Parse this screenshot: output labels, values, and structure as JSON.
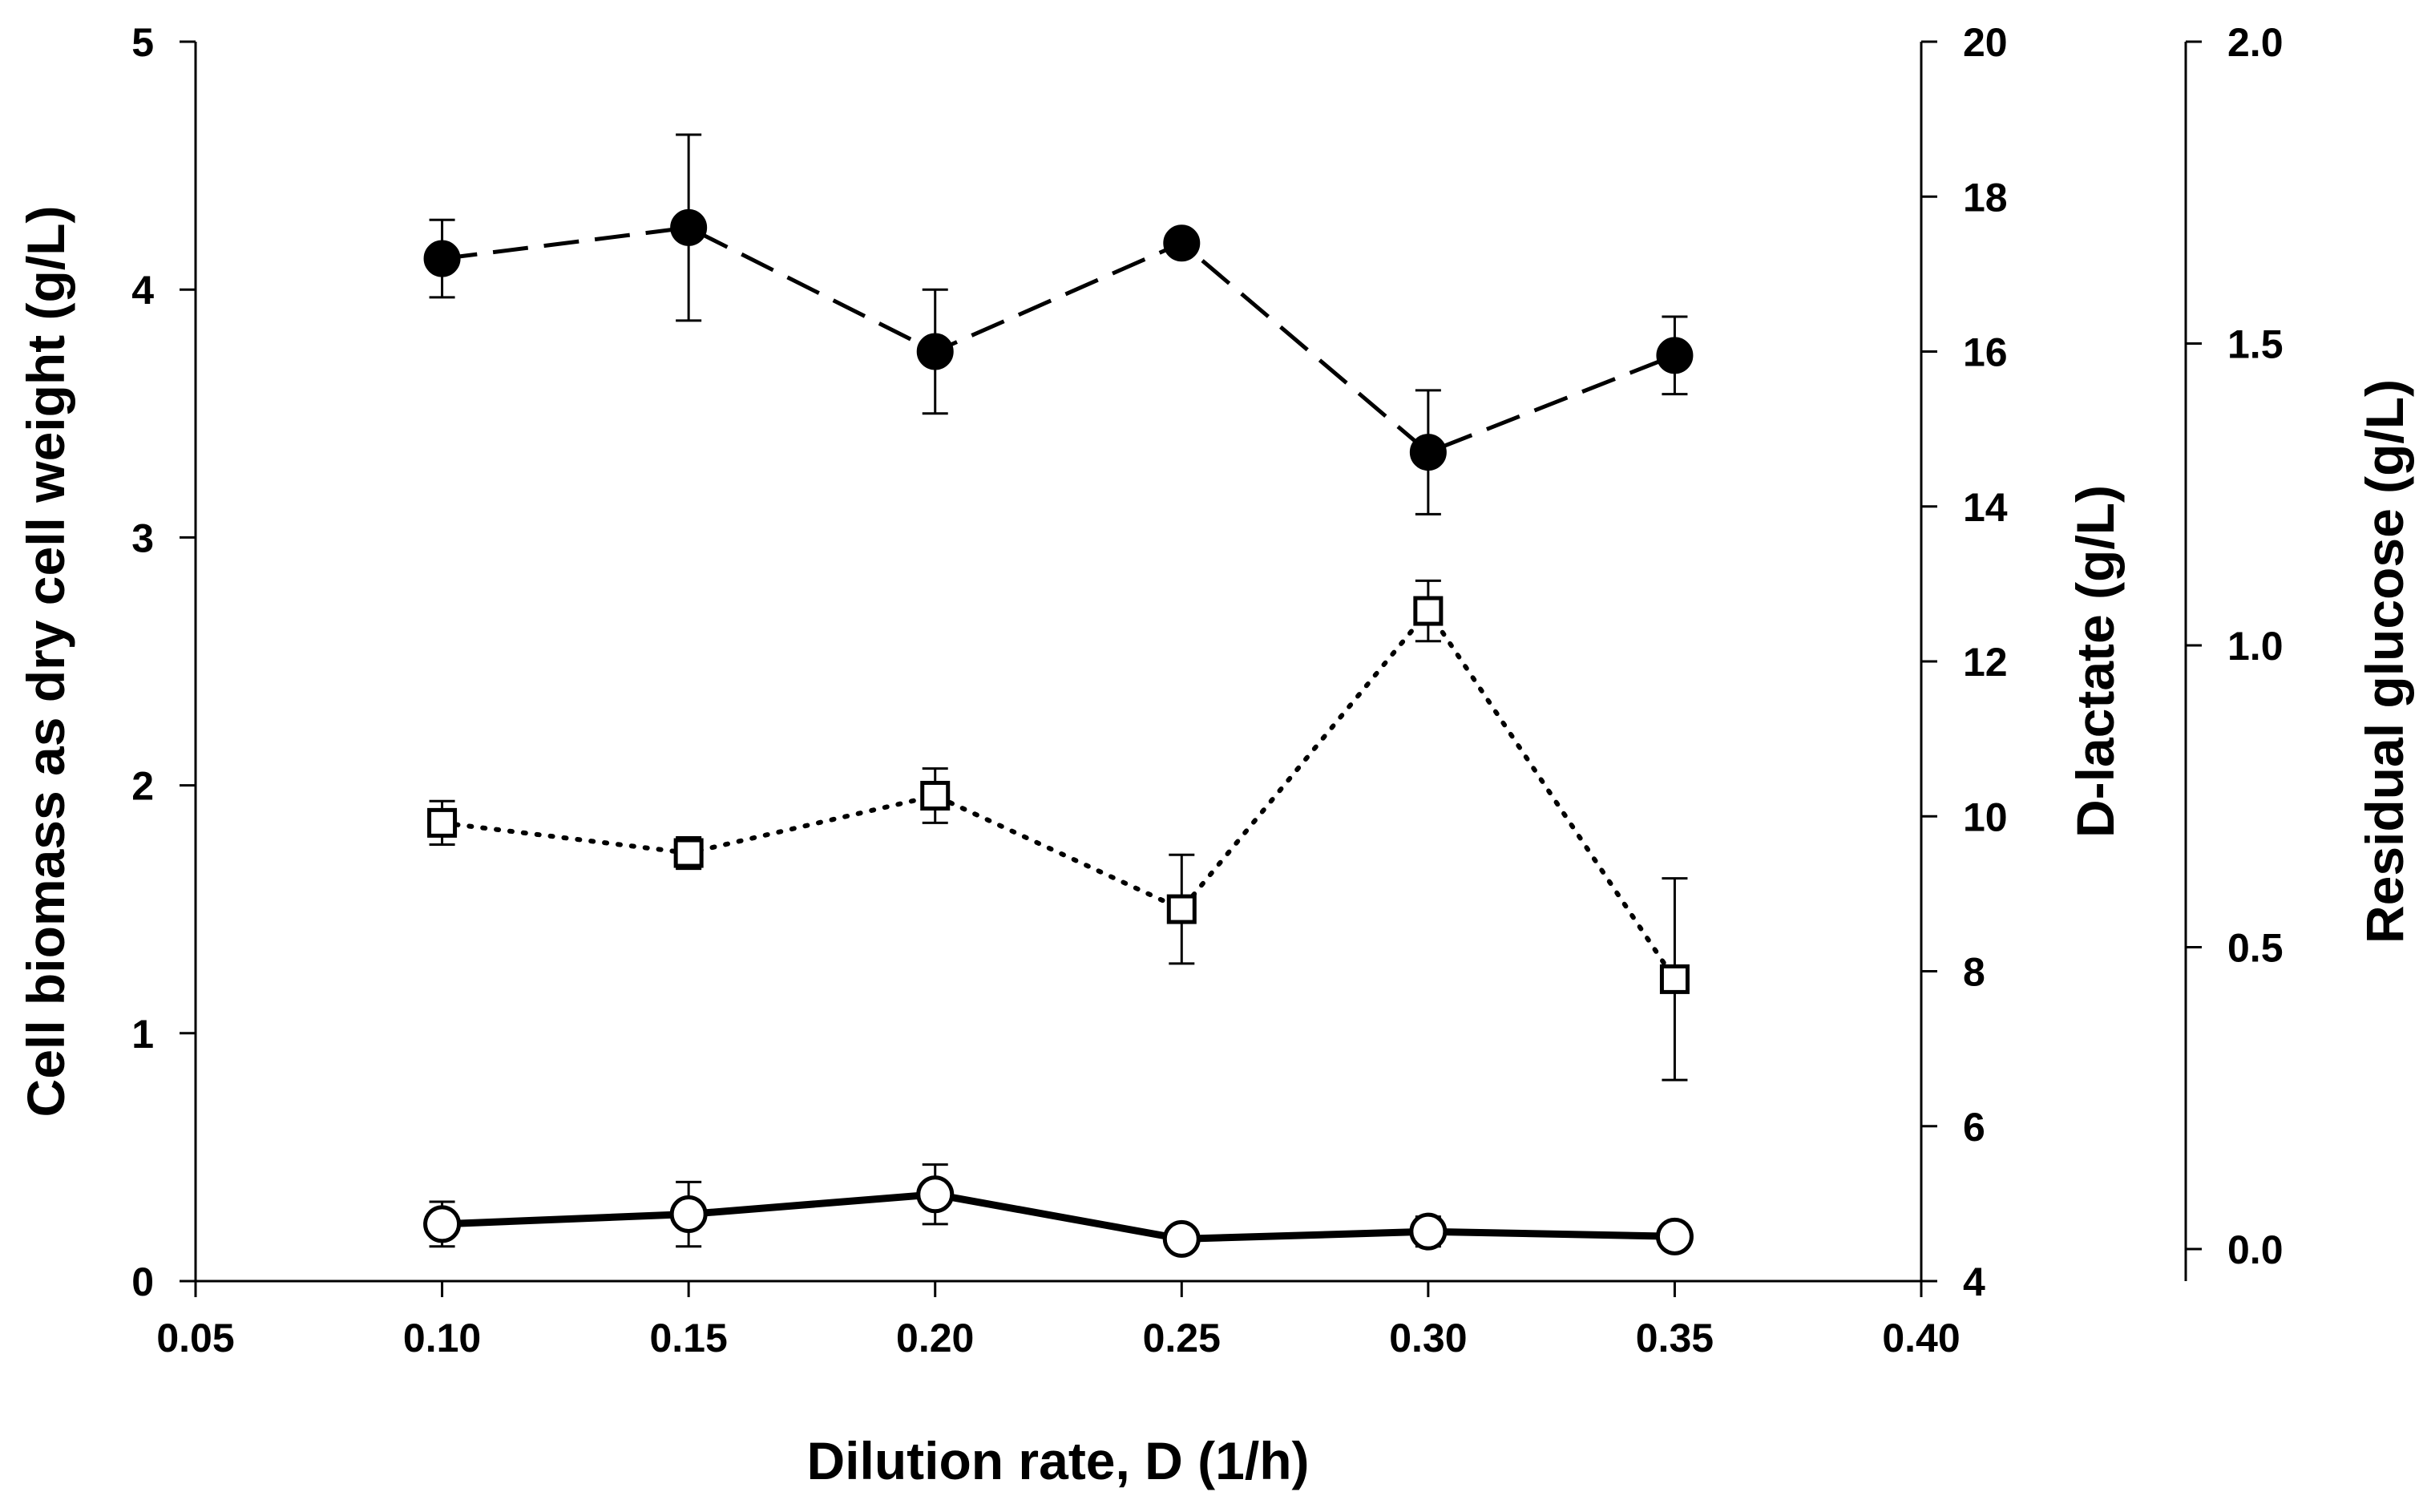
{
  "chart_data": {
    "type": "scatter",
    "xlabel": "Dilution rate, D (1/h)",
    "xlim": [
      0.05,
      0.4
    ],
    "xticks": [
      "0.05",
      "0.10",
      "0.15",
      "0.20",
      "0.25",
      "0.30",
      "0.35",
      "0.40"
    ],
    "axes": {
      "left": {
        "label": "Cell biomass as dry cell weight (g/L)",
        "range": [
          0,
          5
        ],
        "ticks": [
          "0",
          "1",
          "2",
          "3",
          "4",
          "5"
        ]
      },
      "right1": {
        "label": "D-lactate (g/L)",
        "range": [
          4,
          20
        ],
        "ticks": [
          "4",
          "6",
          "8",
          "10",
          "12",
          "14",
          "16",
          "18",
          "20"
        ]
      },
      "right2": {
        "label": "Residual glucose (g/L)",
        "range": [
          -0.05,
          2.0
        ],
        "ticks": [
          "0.0",
          "0.5",
          "1.0",
          "1.5",
          "2.0"
        ]
      }
    },
    "series": [
      {
        "name": "D-lactate",
        "axis": "right1",
        "marker": "filled-circle",
        "line": "dashed",
        "x": [
          0.1,
          0.15,
          0.2,
          0.25,
          0.3,
          0.35
        ],
        "y": [
          17.2,
          17.6,
          16.0,
          17.4,
          14.7,
          15.95
        ],
        "err": [
          0.5,
          1.2,
          0.8,
          0.12,
          0.8,
          0.5
        ]
      },
      {
        "name": "Residual glucose",
        "axis": "right2",
        "marker": "open-square",
        "line": "dotted",
        "x": [
          0.1,
          0.15,
          0.2,
          0.25,
          0.3,
          0.35
        ],
        "y": [
          0.706,
          0.656,
          0.751,
          0.563,
          1.057,
          0.447
        ],
        "err": [
          0.036,
          0.026,
          0.045,
          0.09,
          0.05,
          0.167
        ]
      },
      {
        "name": "Cell biomass",
        "axis": "left",
        "marker": "open-circle",
        "line": "solid",
        "x": [
          0.1,
          0.15,
          0.2,
          0.25,
          0.3,
          0.35
        ],
        "y": [
          0.23,
          0.27,
          0.35,
          0.17,
          0.2,
          0.18
        ],
        "err": [
          0.09,
          0.13,
          0.12,
          0.03,
          0.06,
          0.03
        ]
      }
    ]
  }
}
